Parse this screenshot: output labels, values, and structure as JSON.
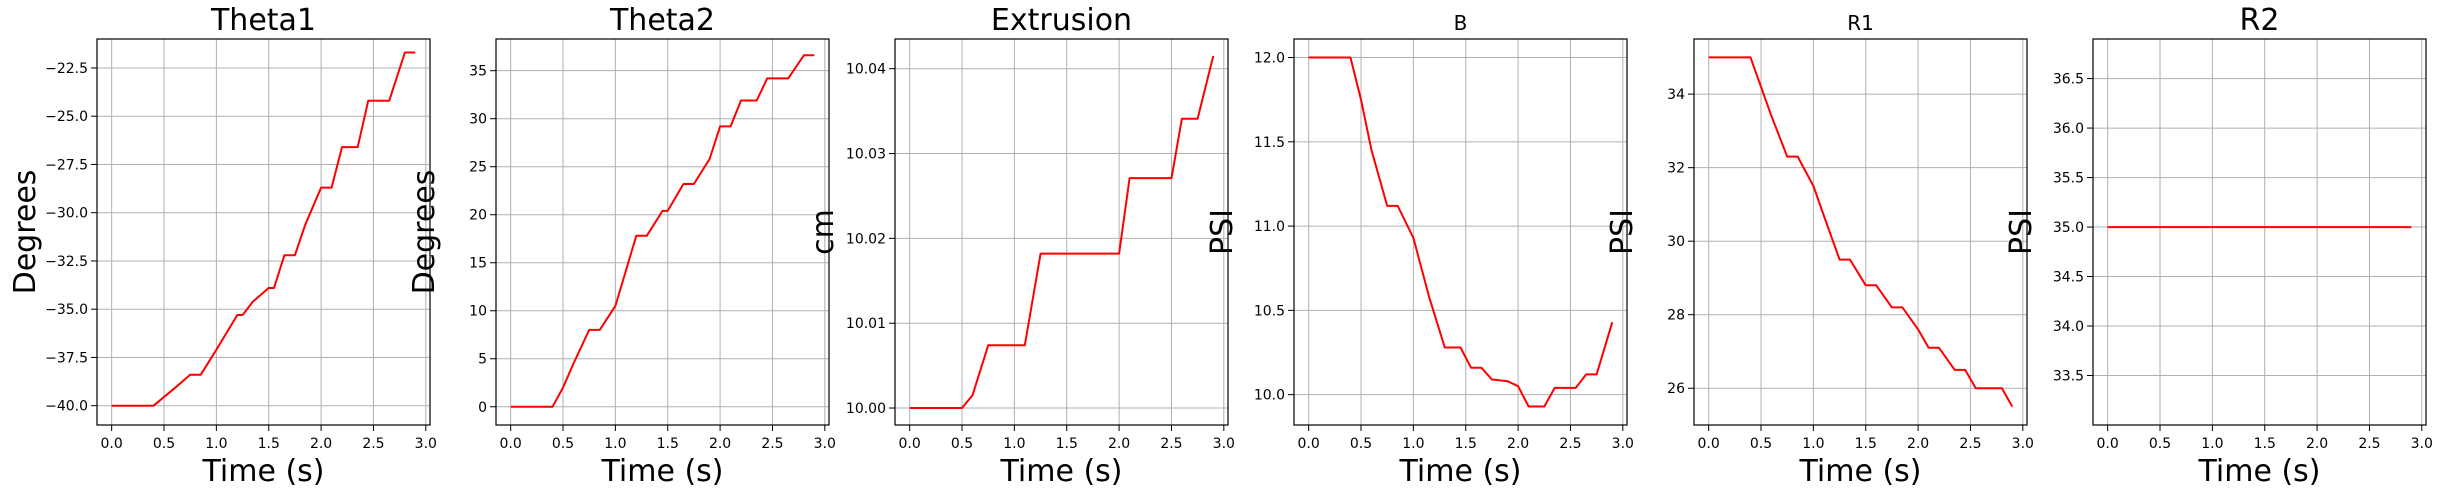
{
  "chart_data": [
    {
      "type": "line",
      "title": "Theta1",
      "xlabel": "Time (s)",
      "ylabel": "Degrees",
      "xlim": [
        -0.14,
        3.04
      ],
      "ylim": [
        -41.0,
        -21.0
      ],
      "xticks": [
        0.0,
        0.5,
        1.0,
        1.5,
        2.0,
        2.5,
        3.0
      ],
      "xtick_labels": [
        "0.0",
        "0.5",
        "1.0",
        "1.5",
        "2.0",
        "2.5",
        "3.0"
      ],
      "yticks": [
        -40.0,
        -37.5,
        -35.0,
        -32.5,
        -30.0,
        -27.5,
        -25.0,
        -22.5
      ],
      "ytick_labels": [
        "−40.0",
        "−37.5",
        "−35.0",
        "−32.5",
        "−30.0",
        "−27.5",
        "−25.0",
        "−22.5"
      ],
      "grid": true,
      "color": "#ff0000",
      "x": [
        0.0,
        0.4,
        0.6,
        0.75,
        0.85,
        1.0,
        1.2,
        1.25,
        1.35,
        1.5,
        1.55,
        1.65,
        1.75,
        1.85,
        2.0,
        2.1,
        2.2,
        2.35,
        2.45,
        2.55,
        2.65,
        2.8,
        2.9
      ],
      "y": [
        -40.0,
        -40.0,
        -39.1,
        -38.4,
        -38.4,
        -37.1,
        -35.3,
        -35.3,
        -34.6,
        -33.9,
        -33.9,
        -32.2,
        -32.2,
        -30.6,
        -28.7,
        -28.7,
        -26.6,
        -26.6,
        -24.2,
        -24.2,
        -24.2,
        -21.7,
        -21.7
      ]
    },
    {
      "type": "line",
      "title": "Theta2",
      "xlabel": "Time (s)",
      "ylabel": "Degrees",
      "xlim": [
        -0.14,
        3.04
      ],
      "ylim": [
        -1.9,
        38.3
      ],
      "xticks": [
        0.0,
        0.5,
        1.0,
        1.5,
        2.0,
        2.5,
        3.0
      ],
      "xtick_labels": [
        "0.0",
        "0.5",
        "1.0",
        "1.5",
        "2.0",
        "2.5",
        "3.0"
      ],
      "yticks": [
        0,
        5,
        10,
        15,
        20,
        25,
        30,
        35
      ],
      "ytick_labels": [
        "0",
        "5",
        "10",
        "15",
        "20",
        "25",
        "30",
        "35"
      ],
      "grid": true,
      "color": "#ff0000",
      "x": [
        0.0,
        0.4,
        0.5,
        0.6,
        0.75,
        0.85,
        1.0,
        1.2,
        1.3,
        1.45,
        1.5,
        1.65,
        1.75,
        1.9,
        2.0,
        2.1,
        2.2,
        2.35,
        2.45,
        2.55,
        2.65,
        2.8,
        2.9
      ],
      "y": [
        0.0,
        0.0,
        2.0,
        4.5,
        8.0,
        8.0,
        10.5,
        17.8,
        17.8,
        20.4,
        20.4,
        23.2,
        23.2,
        25.8,
        29.2,
        29.2,
        31.9,
        31.9,
        34.2,
        34.2,
        34.2,
        36.6,
        36.6
      ]
    },
    {
      "type": "line",
      "title": "Extrusion",
      "xlabel": "Time (s)",
      "ylabel": "cm",
      "xlim": [
        -0.14,
        3.04
      ],
      "ylim": [
        9.998,
        10.0435
      ],
      "xticks": [
        0.0,
        0.5,
        1.0,
        1.5,
        2.0,
        2.5,
        3.0
      ],
      "xtick_labels": [
        "0.0",
        "0.5",
        "1.0",
        "1.5",
        "2.0",
        "2.5",
        "3.0"
      ],
      "yticks": [
        10.0,
        10.01,
        10.02,
        10.03,
        10.04
      ],
      "ytick_labels": [
        "10.00",
        "10.01",
        "10.02",
        "10.03",
        "10.04"
      ],
      "grid": true,
      "color": "#ff0000",
      "x": [
        0.0,
        0.5,
        0.6,
        0.75,
        1.1,
        1.25,
        2.0,
        2.1,
        2.5,
        2.6,
        2.75,
        2.9
      ],
      "y": [
        10.0,
        10.0,
        10.0015,
        10.0074,
        10.0074,
        10.0182,
        10.0182,
        10.0271,
        10.0271,
        10.0341,
        10.0341,
        10.0415
      ]
    },
    {
      "type": "line",
      "title": "B",
      "xlabel": "Time (s)",
      "ylabel": "PSI",
      "xlim": [
        -0.14,
        3.04
      ],
      "ylim": [
        9.82,
        12.11
      ],
      "xticks": [
        0.0,
        0.5,
        1.0,
        1.5,
        2.0,
        2.5,
        3.0
      ],
      "xtick_labels": [
        "0.0",
        "0.5",
        "1.0",
        "1.5",
        "2.0",
        "2.5",
        "3.0"
      ],
      "yticks": [
        10.0,
        10.5,
        11.0,
        11.5,
        12.0
      ],
      "ytick_labels": [
        "10.0",
        "10.5",
        "11.0",
        "11.5",
        "12.0"
      ],
      "grid": true,
      "color": "#ff0000",
      "x": [
        0.0,
        0.4,
        0.5,
        0.6,
        0.75,
        0.85,
        1.0,
        1.15,
        1.3,
        1.45,
        1.55,
        1.65,
        1.75,
        1.9,
        2.0,
        2.1,
        2.25,
        2.35,
        2.45,
        2.55,
        2.65,
        2.75,
        2.9
      ],
      "y": [
        12.0,
        12.0,
        11.75,
        11.45,
        11.12,
        11.12,
        10.93,
        10.58,
        10.28,
        10.28,
        10.16,
        10.16,
        10.09,
        10.08,
        10.05,
        9.93,
        9.93,
        10.04,
        10.04,
        10.04,
        10.12,
        10.12,
        10.43
      ]
    },
    {
      "type": "line",
      "title": "R1",
      "xlabel": "Time (s)",
      "ylabel": "PSI",
      "xlim": [
        -0.14,
        3.04
      ],
      "ylim": [
        25.0,
        35.5
      ],
      "xticks": [
        0.0,
        0.5,
        1.0,
        1.5,
        2.0,
        2.5,
        3.0
      ],
      "xtick_labels": [
        "0.0",
        "0.5",
        "1.0",
        "1.5",
        "2.0",
        "2.5",
        "3.0"
      ],
      "yticks": [
        26,
        28,
        30,
        32,
        34
      ],
      "ytick_labels": [
        "26",
        "28",
        "30",
        "32",
        "34"
      ],
      "grid": true,
      "color": "#ff0000",
      "x": [
        0.0,
        0.4,
        0.5,
        0.6,
        0.75,
        0.85,
        1.0,
        1.1,
        1.25,
        1.35,
        1.5,
        1.6,
        1.75,
        1.85,
        2.0,
        2.1,
        2.2,
        2.35,
        2.45,
        2.55,
        2.65,
        2.8,
        2.9
      ],
      "y": [
        35.0,
        35.0,
        34.2,
        33.4,
        32.3,
        32.3,
        31.5,
        30.7,
        29.5,
        29.5,
        28.8,
        28.8,
        28.2,
        28.2,
        27.6,
        27.1,
        27.1,
        26.5,
        26.5,
        26.0,
        26.0,
        26.0,
        25.5
      ]
    },
    {
      "type": "line",
      "title": "R2",
      "xlabel": "Time (s)",
      "ylabel": "PSI",
      "xlim": [
        -0.14,
        3.04
      ],
      "ylim": [
        33.0,
        36.9
      ],
      "xticks": [
        0.0,
        0.5,
        1.0,
        1.5,
        2.0,
        2.5,
        3.0
      ],
      "xtick_labels": [
        "0.0",
        "0.5",
        "1.0",
        "1.5",
        "2.0",
        "2.5",
        "3.0"
      ],
      "yticks": [
        33.5,
        34.0,
        34.5,
        35.0,
        35.5,
        36.0,
        36.5
      ],
      "ytick_labels": [
        "33.5",
        "34.0",
        "34.5",
        "35.0",
        "35.5",
        "36.0",
        "36.5"
      ],
      "grid": true,
      "color": "#ff0000",
      "x": [
        0.0,
        2.9
      ],
      "y": [
        35.0,
        35.0
      ]
    }
  ]
}
